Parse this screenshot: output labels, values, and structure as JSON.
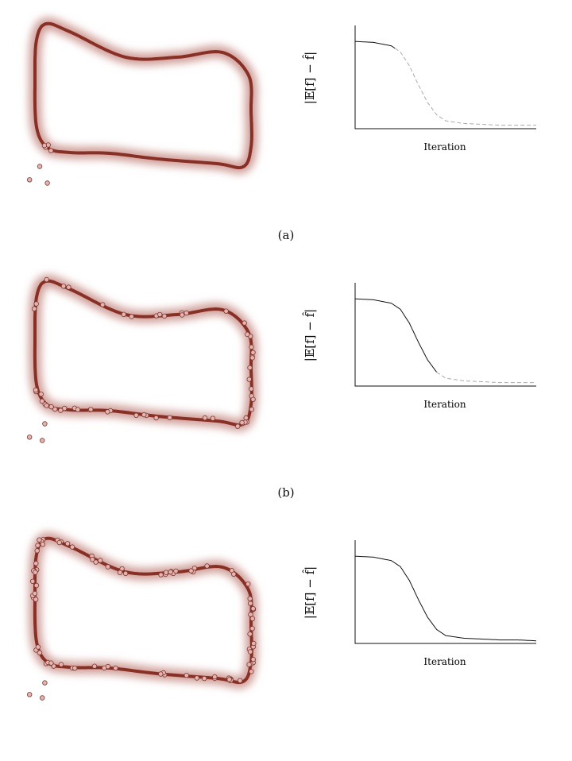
{
  "panels": [
    {
      "caption": "(a)",
      "ylabel": "|𝔼[f] − f̂|",
      "xlabel": "Iteration"
    },
    {
      "caption": "(b)",
      "ylabel": "|𝔼[f] − f̂|",
      "xlabel": "Iteration"
    },
    {
      "caption": "",
      "ylabel": "|𝔼[f] − f̂|",
      "xlabel": "Iteration"
    }
  ],
  "colors": {
    "curve": "#8b2f25",
    "glow": "#c0837a",
    "point_fill": "#e8b3ae",
    "point_stroke": "#7a3a32",
    "solid_line": "#111111",
    "dashed_line": "#aaaaaa",
    "axis": "#111111"
  },
  "chart_data": [
    {
      "type": "line",
      "title": "",
      "xlabel": "Iteration",
      "ylabel": "|𝔼[f] − f̂|",
      "x": [
        0,
        0.1,
        0.2,
        0.25,
        0.3,
        0.35,
        0.4,
        0.45,
        0.5,
        0.6,
        0.7,
        0.8,
        0.9,
        1.0
      ],
      "series": [
        {
          "style": "solid",
          "x_end": 0.22,
          "values": [
            1.0,
            0.99,
            0.95,
            0.88,
            0.72,
            0.5,
            0.3,
            0.16,
            0.09,
            0.06,
            0.05,
            0.04,
            0.04,
            0.04
          ]
        },
        {
          "style": "dashed",
          "x_start": 0.22,
          "values": [
            1.0,
            0.99,
            0.95,
            0.88,
            0.72,
            0.5,
            0.3,
            0.16,
            0.09,
            0.06,
            0.05,
            0.04,
            0.04,
            0.04
          ]
        }
      ]
    },
    {
      "type": "line",
      "title": "",
      "xlabel": "Iteration",
      "ylabel": "|𝔼[f] − f̂|",
      "x": [
        0,
        0.1,
        0.2,
        0.25,
        0.3,
        0.35,
        0.4,
        0.45,
        0.5,
        0.6,
        0.7,
        0.8,
        0.9,
        1.0
      ],
      "series": [
        {
          "style": "solid",
          "x_end": 0.45,
          "values": [
            1.0,
            0.99,
            0.95,
            0.88,
            0.72,
            0.5,
            0.3,
            0.16,
            0.09,
            0.06,
            0.05,
            0.04,
            0.04,
            0.04
          ]
        },
        {
          "style": "dashed",
          "x_start": 0.45,
          "values": [
            1.0,
            0.99,
            0.95,
            0.88,
            0.72,
            0.5,
            0.3,
            0.16,
            0.09,
            0.06,
            0.05,
            0.04,
            0.04,
            0.04
          ]
        }
      ]
    },
    {
      "type": "line",
      "title": "",
      "xlabel": "Iteration",
      "ylabel": "|𝔼[f] − f̂|",
      "x": [
        0,
        0.1,
        0.2,
        0.25,
        0.3,
        0.35,
        0.4,
        0.45,
        0.5,
        0.6,
        0.7,
        0.8,
        0.9,
        1.0
      ],
      "series": [
        {
          "style": "solid",
          "values": [
            1.0,
            0.99,
            0.95,
            0.88,
            0.72,
            0.5,
            0.3,
            0.16,
            0.09,
            0.06,
            0.05,
            0.04,
            0.04,
            0.03
          ]
        }
      ]
    }
  ],
  "samples": [
    {
      "on_curve_fraction": 0.02,
      "outside": [
        [
          0.1,
          0.95
        ],
        [
          0.06,
          1.03
        ],
        [
          0.13,
          1.05
        ]
      ]
    },
    {
      "on_curve_fraction": 0.6,
      "outside": [
        [
          0.12,
          0.95
        ],
        [
          0.06,
          1.03
        ],
        [
          0.11,
          1.05
        ]
      ]
    },
    {
      "on_curve_fraction": 1.0,
      "outside": [
        [
          0.12,
          0.96
        ],
        [
          0.06,
          1.03
        ],
        [
          0.11,
          1.05
        ]
      ]
    }
  ]
}
